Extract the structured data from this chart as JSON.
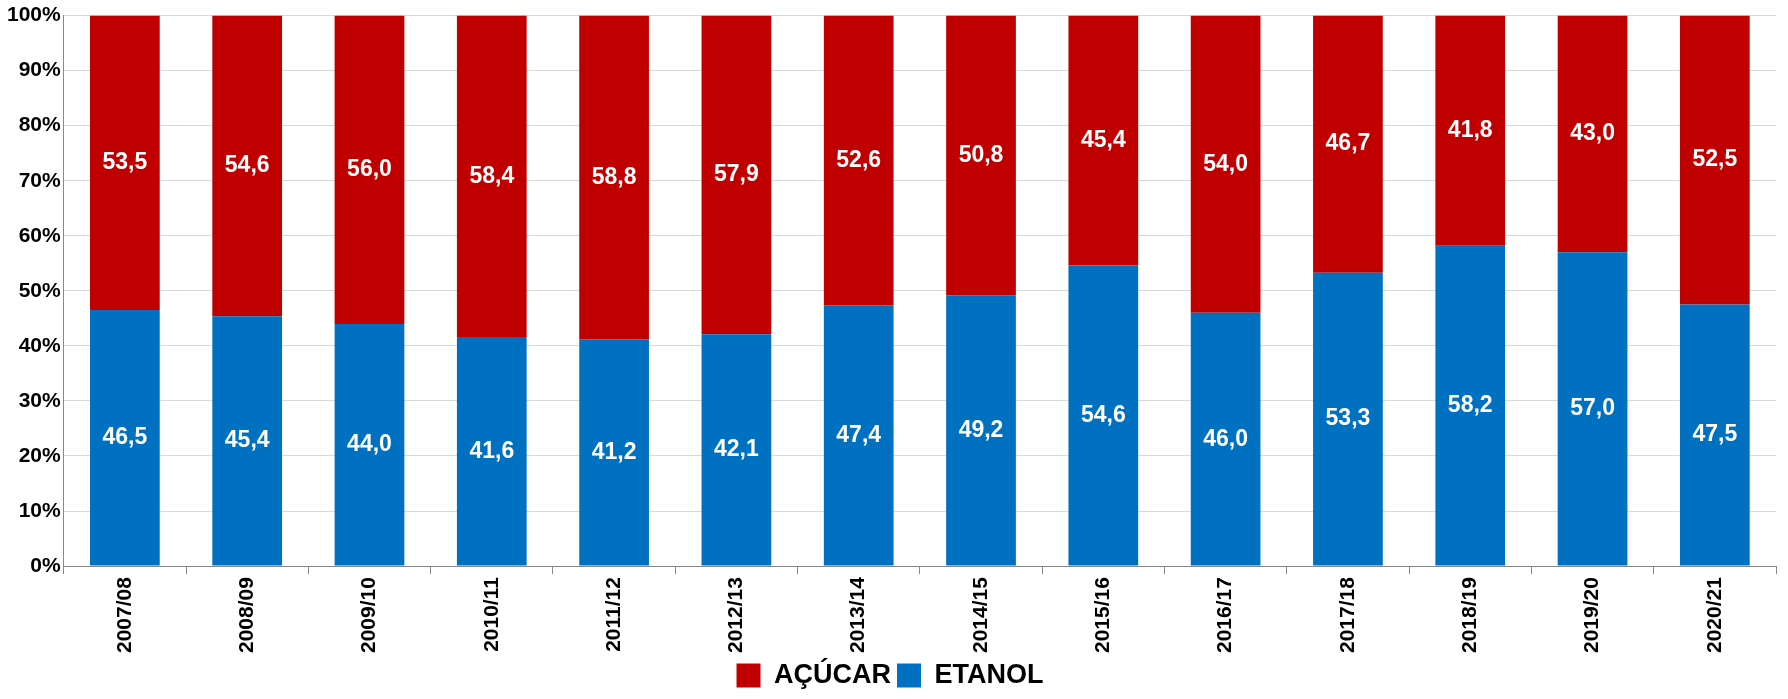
{
  "chart_data": {
    "type": "bar",
    "stacked": true,
    "categories": [
      "2007/08",
      "2008/09",
      "2009/10",
      "2010/11",
      "2011/12",
      "2012/13",
      "2013/14",
      "2014/15",
      "2015/16",
      "2016/17",
      "2017/18",
      "2018/19",
      "2019/20",
      "2020/21"
    ],
    "series": [
      {
        "name": "ETANOL",
        "color": "#0070c0",
        "values": [
          46.5,
          45.4,
          44.0,
          41.6,
          41.2,
          42.1,
          47.4,
          49.2,
          54.6,
          46.0,
          53.3,
          58.2,
          57.0,
          47.5
        ],
        "value_labels": [
          "46,5",
          "45,4",
          "44,0",
          "41,6",
          "41,2",
          "42,1",
          "47,4",
          "49,2",
          "54,6",
          "46,0",
          "53,3",
          "58,2",
          "57,0",
          "47,5"
        ]
      },
      {
        "name": "AÇÚCAR",
        "color": "#c00000",
        "values": [
          53.5,
          54.6,
          56.0,
          58.4,
          58.8,
          57.9,
          52.6,
          50.8,
          45.4,
          54.0,
          46.7,
          41.8,
          43.0,
          52.5
        ],
        "value_labels": [
          "53,5",
          "54,6",
          "56,0",
          "58,4",
          "58,8",
          "57,9",
          "52,6",
          "50,8",
          "45,4",
          "54,0",
          "46,7",
          "41,8",
          "43,0",
          "52,5"
        ]
      }
    ],
    "ylim": [
      0,
      100
    ],
    "yticks": [
      {
        "value": 0,
        "label": "0%"
      },
      {
        "value": 10,
        "label": "10%"
      },
      {
        "value": 20,
        "label": "20%"
      },
      {
        "value": 30,
        "label": "30%"
      },
      {
        "value": 40,
        "label": "40%"
      },
      {
        "value": 50,
        "label": "50%"
      },
      {
        "value": 60,
        "label": "60%"
      },
      {
        "value": 70,
        "label": "70%"
      },
      {
        "value": 80,
        "label": "80%"
      },
      {
        "value": 90,
        "label": "90%"
      },
      {
        "value": 100,
        "label": "100%"
      }
    ],
    "grid": "y",
    "legend": "bottom"
  }
}
